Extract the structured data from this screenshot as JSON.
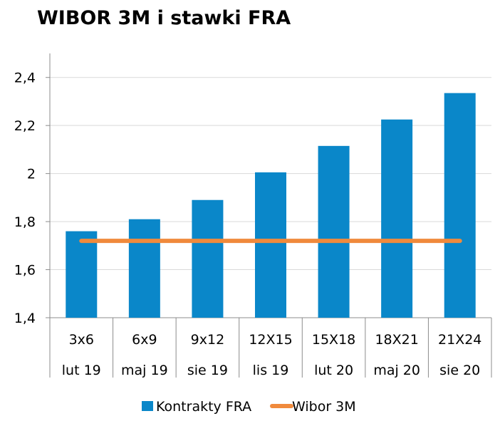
{
  "chart_data": {
    "type": "bar",
    "title": "WIBOR 3M i stawki FRA",
    "categories": [
      [
        "3x6",
        "lut 19"
      ],
      [
        "6x9",
        "maj 19"
      ],
      [
        "9x12",
        "sie 19"
      ],
      [
        "12X15",
        "lis 19"
      ],
      [
        "15X18",
        "lut 20"
      ],
      [
        "18X21",
        "maj 20"
      ],
      [
        "21X24",
        "sie 20"
      ]
    ],
    "series": [
      {
        "name": "Kontrakty FRA",
        "kind": "bar",
        "color": "#0a87c9",
        "values": [
          1.76,
          1.81,
          1.89,
          2.005,
          2.115,
          2.225,
          2.335
        ]
      },
      {
        "name": "Wibor 3M",
        "kind": "line",
        "color": "#f08a3c",
        "values": [
          1.72,
          1.72,
          1.72,
          1.72,
          1.72,
          1.72,
          1.72
        ]
      }
    ],
    "ylim": [
      1.4,
      2.5
    ],
    "yticks": [
      1.4,
      1.6,
      1.8,
      2.0,
      2.2,
      2.4
    ],
    "ytick_labels": [
      "1,4",
      "1,6",
      "1,8",
      "2",
      "2,2",
      "2,4"
    ],
    "grid": true,
    "legend": "bottom"
  }
}
